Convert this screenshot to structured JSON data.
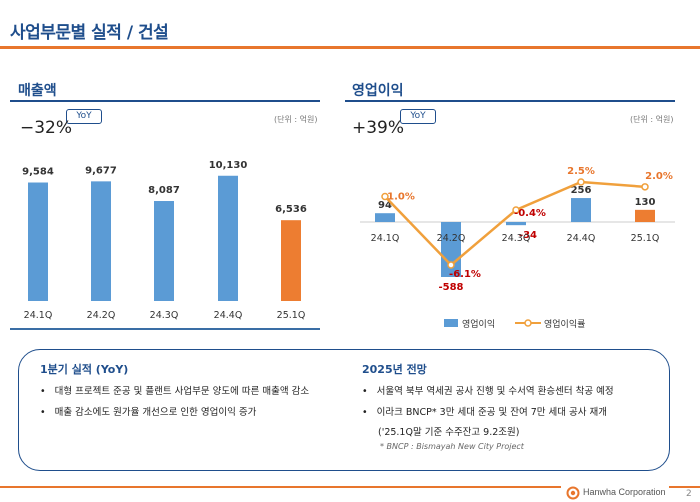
{
  "page": {
    "title": "사업부문별 실적 / 건설",
    "page_number": "2",
    "logo_text": "Hanwha Corporation"
  },
  "revenue": {
    "title": "매출액",
    "yoy_label": "YoY",
    "yoy_value": "−32%",
    "unit": "(단위 : 억원)"
  },
  "op": {
    "title": "영업이익",
    "yoy_label": "YoY",
    "yoy_value": "+39%",
    "unit": "(단위 : 억원)",
    "legend_bar": "영업이익",
    "legend_line": "영업이익률"
  },
  "chart_data": [
    {
      "type": "bar",
      "title": "매출액",
      "categories": [
        "24.1Q",
        "24.2Q",
        "24.3Q",
        "24.4Q",
        "25.1Q"
      ],
      "values": [
        9584,
        9677,
        8087,
        10130,
        6536
      ],
      "labels": [
        "9,584",
        "9,677",
        "8,087",
        "10,130",
        "6,536"
      ],
      "highlight_index": 4,
      "colors": {
        "bar": "#5b9bd5",
        "highlight": "#ed7d31"
      },
      "ylim": [
        0,
        11000
      ]
    },
    {
      "type": "bar+line",
      "title": "영업이익",
      "categories": [
        "24.1Q",
        "24.2Q",
        "24.3Q",
        "24.4Q",
        "25.1Q"
      ],
      "series": [
        {
          "name": "영업이익",
          "values": [
            94,
            -588,
            -34,
            256,
            130
          ],
          "labels": [
            "94",
            "-588",
            "-34",
            "256",
            "130"
          ]
        },
        {
          "name": "영업이익률",
          "values": [
            1.0,
            -6.1,
            -0.4,
            2.5,
            2.0
          ],
          "labels": [
            "1.0%",
            "-6.1%",
            "-0.4%",
            "2.5%",
            "2.0%"
          ]
        }
      ],
      "highlight_index": 4,
      "colors": {
        "bar": "#5b9bd5",
        "highlight": "#ed7d31",
        "line": "#f0a03c",
        "negative": "#c00000",
        "positive_rate": "#e8762d"
      },
      "ylim": [
        -600,
        300
      ],
      "ylim_rate": [
        -7,
        3
      ]
    }
  ],
  "notes": {
    "q1_title": "1분기 실적 (YoY)",
    "q1_items": [
      "대형 프로젝트 준공 및 플랜트 사업부문 양도에 따른 매출액 감소",
      "매출 감소에도 원가율 개선으로 인한 영업이익 증가"
    ],
    "outlook_title": "2025년 전망",
    "outlook_items": [
      "서울역 북부 역세권 공사 진행 및 수서역 환승센터 착공 예정",
      "이라크 BNCP* 3만 세대 준공 및 잔여 7만 세대 공사 재개"
    ],
    "outlook_sub": "('25.1Q말 기준 수주잔고 9.2조원)",
    "footnote": "* BNCP : Bismayah New City Project"
  }
}
